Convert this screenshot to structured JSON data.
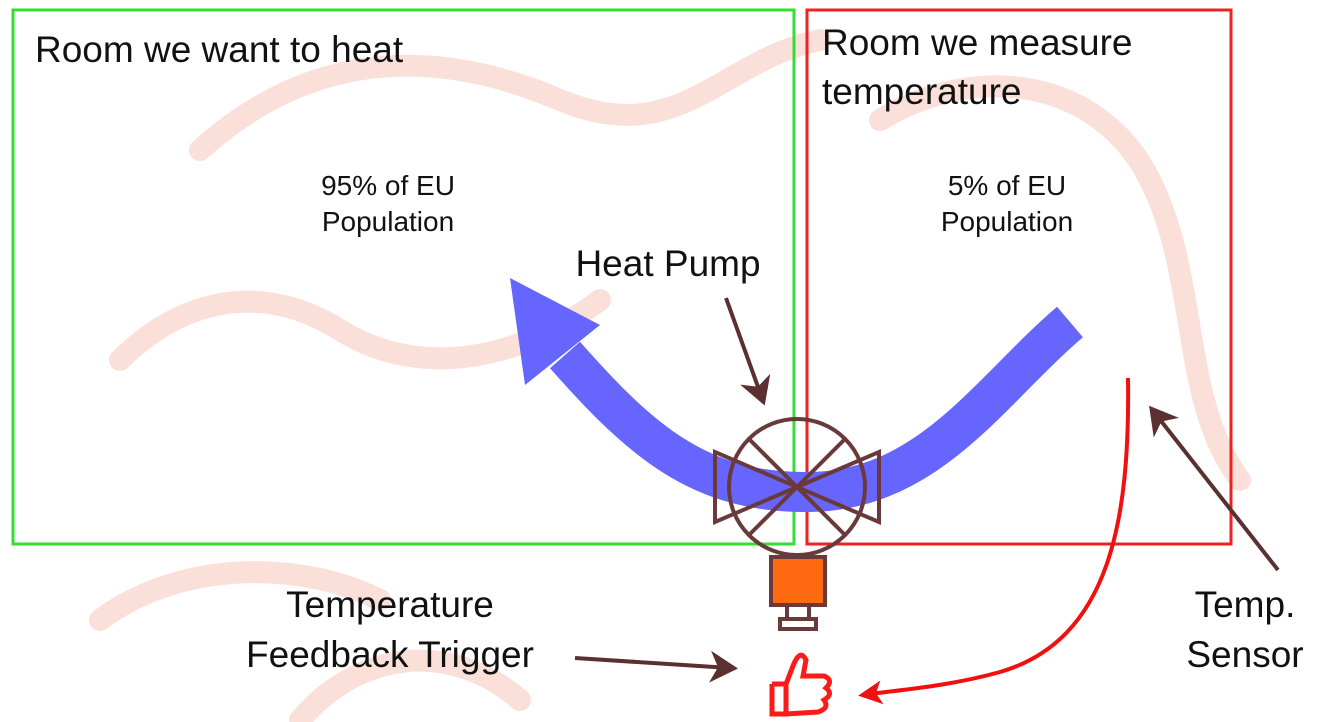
{
  "rooms": [
    {
      "title": [
        "Room we want to heat"
      ],
      "population": [
        "95% of EU",
        "Population"
      ]
    },
    {
      "title": [
        "Room we measure",
        "temperature"
      ],
      "population": [
        "5% of EU",
        "Population"
      ]
    }
  ],
  "labels": {
    "heat_pump": [
      "Heat Pump"
    ],
    "feedback": [
      "Temperature",
      "Feedback Trigger"
    ],
    "sensor": [
      "Temp.",
      "Sensor"
    ]
  }
}
